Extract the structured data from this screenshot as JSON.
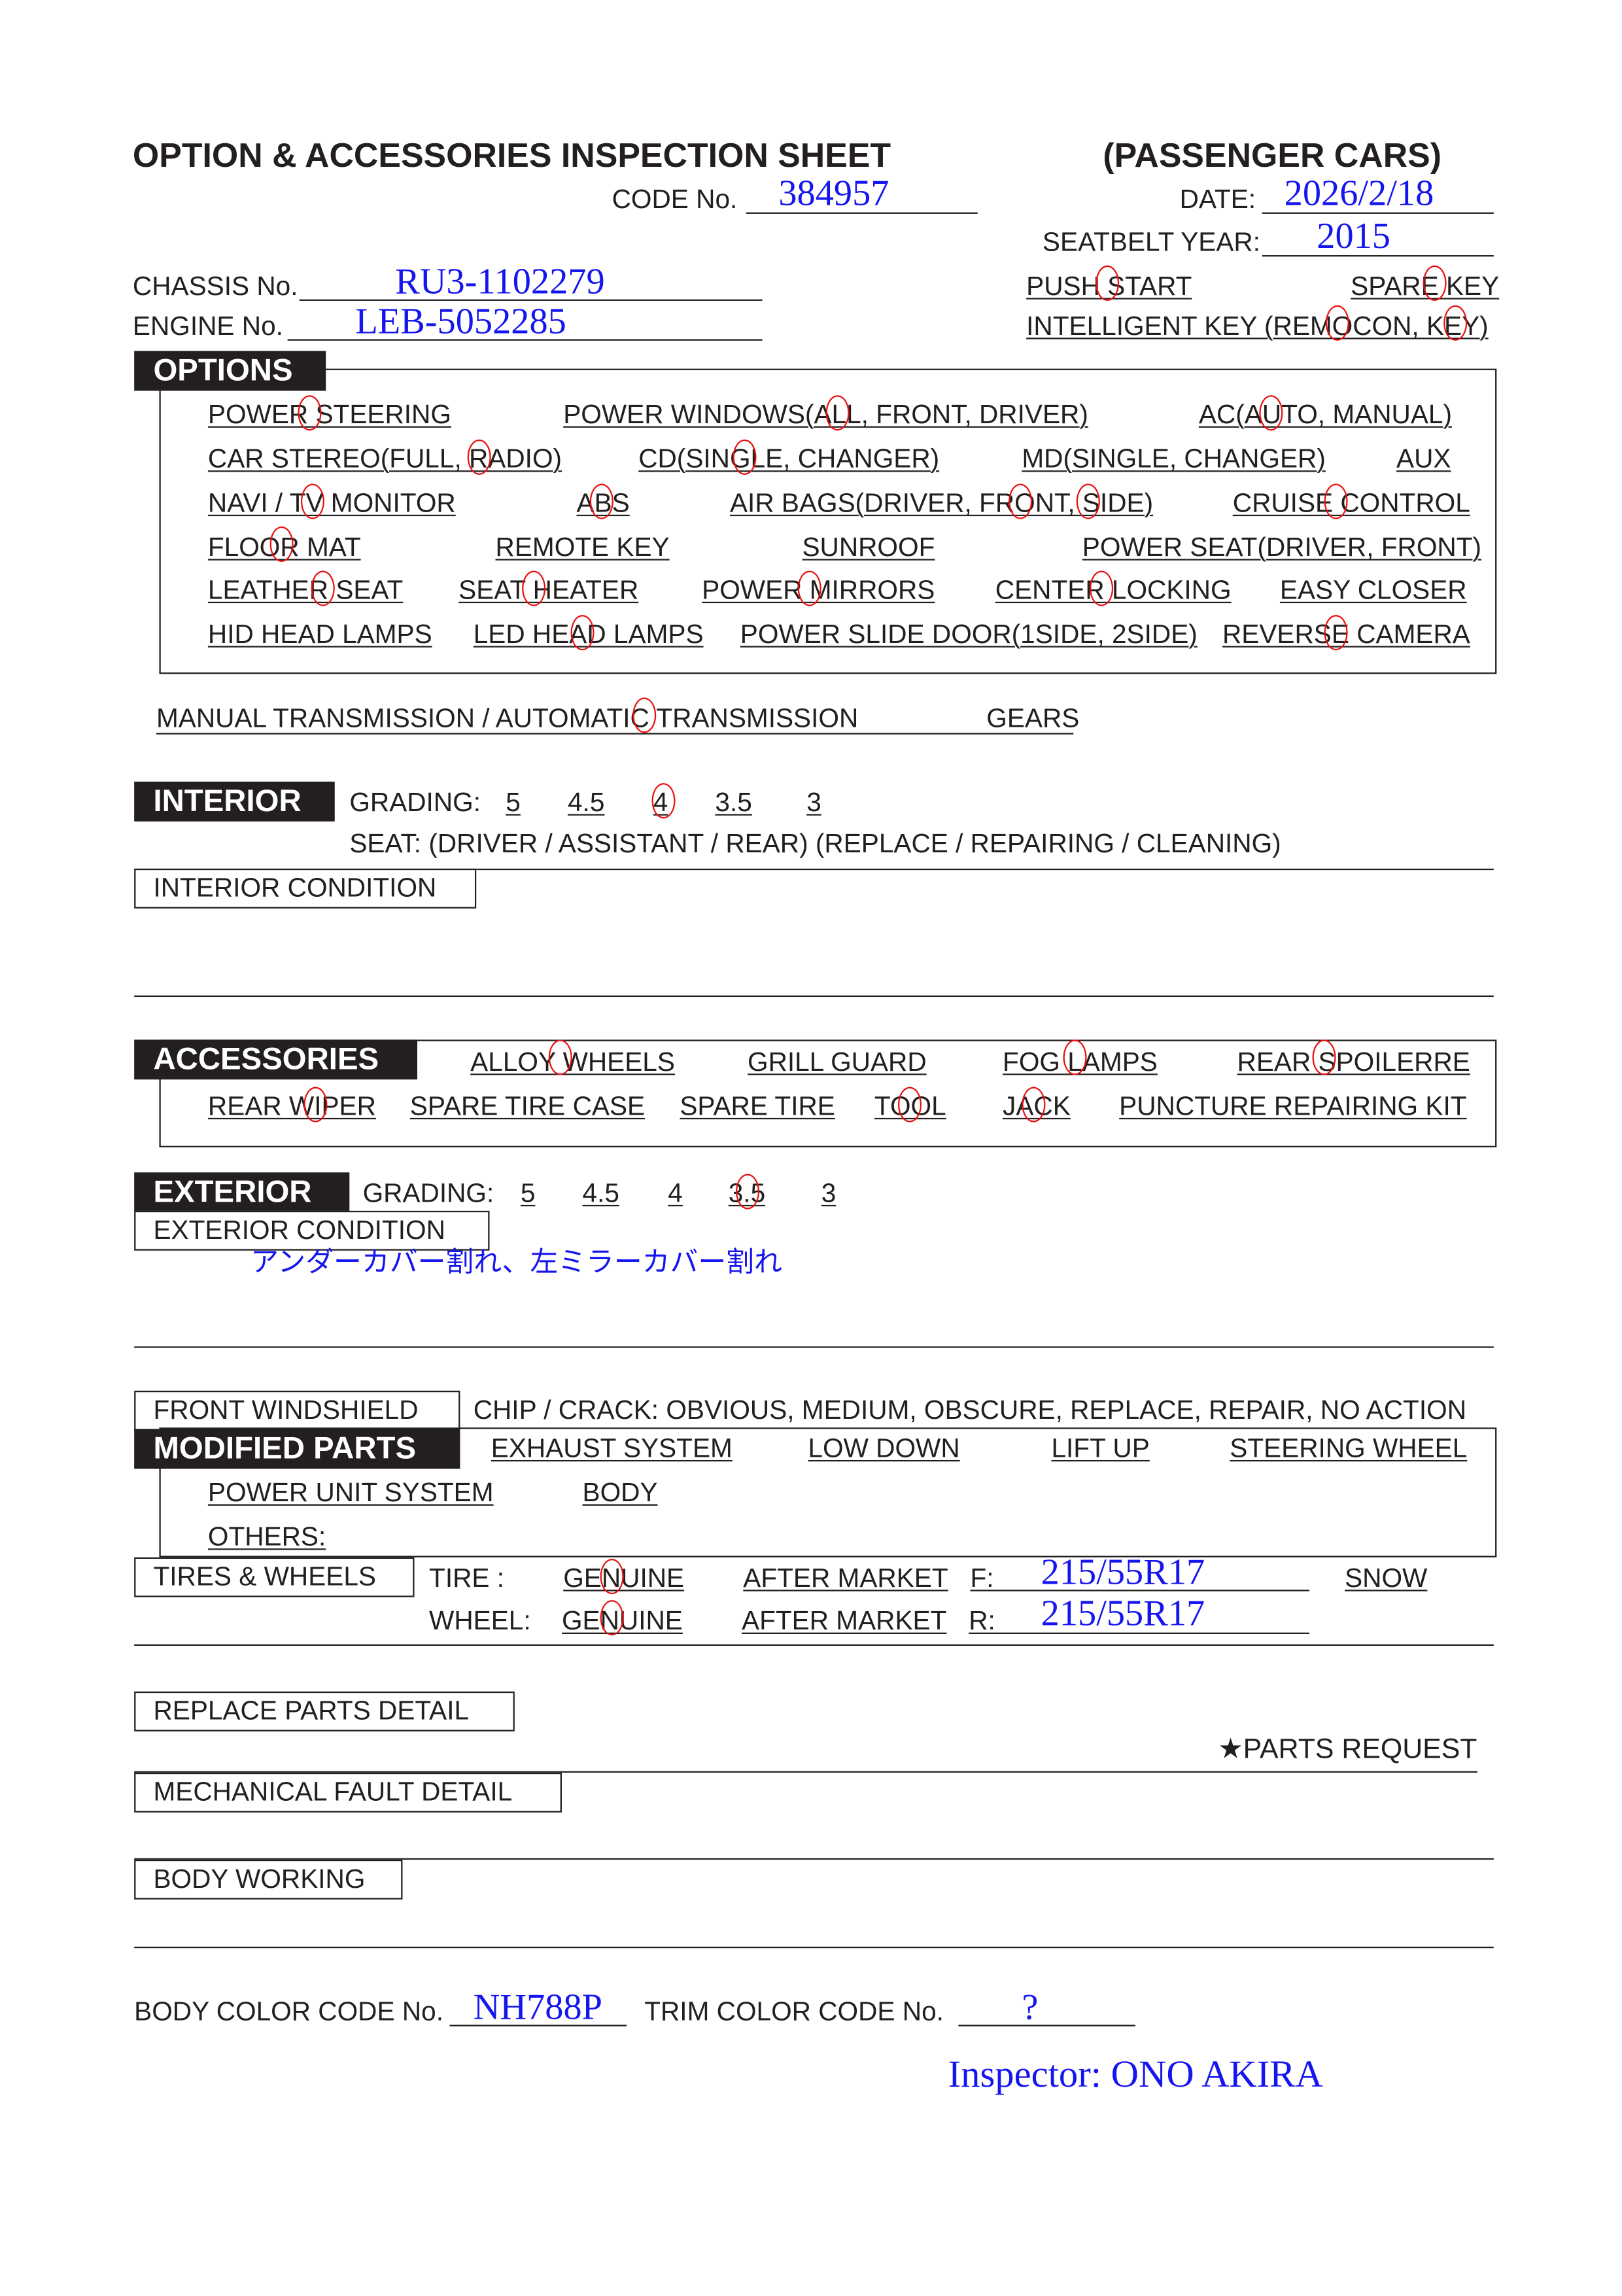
{
  "header": {
    "title": "OPTION & ACCESSORIES INSPECTION SHEET",
    "subtitle": "(PASSENGER CARS)",
    "code_label": "CODE No.",
    "code_value": "384957",
    "date_label": "DATE:",
    "date_value": "2026/2/18",
    "seatbelt_label": "SEATBELT YEAR:",
    "seatbelt_value": "2015",
    "chassis_label": "CHASSIS No.",
    "chassis_value": "RU3-1102279",
    "engine_label": "ENGINE No.",
    "engine_value": "LEB-5052285",
    "push_start": "PUSH START",
    "spare_key": "SPARE KEY",
    "intelligent_key": "INTELLIGENT KEY (REMOCON, KEY)"
  },
  "options": {
    "label": "OPTIONS",
    "items": [
      "POWER STEERING",
      "POWER WINDOWS(ALL, FRONT, DRIVER)",
      "AC(AUTO, MANUAL)",
      "CAR STEREO(FULL, RADIO)",
      "CD(SINGLE, CHANGER)",
      "MD(SINGLE, CHANGER)",
      "AUX",
      "NAVI / TV MONITOR",
      "ABS",
      "AIR BAGS(DRIVER, FRONT, SIDE)",
      "CRUISE CONTROL",
      "FLOOR MAT",
      "REMOTE KEY",
      "SUNROOF",
      "POWER SEAT(DRIVER, FRONT)",
      "LEATHER SEAT",
      "SEAT HEATER",
      "POWER MIRRORS",
      "CENTER LOCKING",
      "EASY CLOSER",
      "HID HEAD LAMPS",
      "LED HEAD LAMPS",
      "POWER SLIDE DOOR(1SIDE,  2SIDE)",
      "REVERSE CAMERA"
    ],
    "circled": [
      "POWER STEERING",
      "POWER WINDOWS: ALL",
      "AC: AUTO",
      "CAR STEREO: RADIO",
      "CD: SINGLE",
      "NAVI / TV MONITOR",
      "ABS",
      "AIR BAGS: FRONT",
      "AIR BAGS: SIDE",
      "CRUISE CONTROL",
      "FLOOR MAT",
      "LEATHER SEAT",
      "SEAT HEATER",
      "POWER MIRRORS",
      "CENTER LOCKING",
      "LED HEAD LAMPS",
      "REVERSE CAMERA",
      "PUSH START",
      "SPARE KEY",
      "INTELLIGENT KEY: REMOCON",
      "INTELLIGENT KEY: KEY"
    ]
  },
  "transmission": {
    "text": "MANUAL TRANSMISSION / AUTOMATIC TRANSMISSION",
    "gears": "GEARS",
    "circled": "AUTOMATIC TRANSMISSION"
  },
  "interior": {
    "label": "INTERIOR",
    "grading_label": "GRADING:",
    "grades": [
      "5",
      "4.5",
      "4",
      "3.5",
      "3"
    ],
    "selected_grade": "4",
    "seat_text": "SEAT:  (DRIVER / ASSISTANT / REAR)    (REPLACE / REPAIRING / CLEANING)",
    "condition_label": "INTERIOR CONDITION"
  },
  "accessories": {
    "label": "ACCESSORIES",
    "items": [
      "ALLOY WHEELS",
      "GRILL GUARD",
      "FOG LAMPS",
      "REAR SPOILERRE",
      "REAR WIPER",
      "SPARE TIRE CASE",
      "SPARE TIRE",
      "TOOL",
      "JACK",
      "PUNCTURE REPAIRING KIT"
    ],
    "circled": [
      "ALLOY WHEELS",
      "FOG LAMPS",
      "REAR SPOILERRE",
      "REAR WIPER",
      "TOOL",
      "JACK"
    ]
  },
  "exterior": {
    "label": "EXTERIOR",
    "grading_label": "GRADING:",
    "grades": [
      "5",
      "4.5",
      "4",
      "3.5",
      "3"
    ],
    "selected_grade": "3.5",
    "condition_label": "EXTERIOR CONDITION",
    "condition_note": "アンダーカバー割れ、左ミラーカバー割れ"
  },
  "windshield": {
    "label": "FRONT WINDSHIELD",
    "text": "CHIP / CRACK:  OBVIOUS,  MEDIUM,  OBSCURE,  REPLACE,  REPAIR,  NO ACTION"
  },
  "modified": {
    "label": "MODIFIED PARTS",
    "items": [
      "EXHAUST SYSTEM",
      "LOW DOWN",
      "LIFT UP",
      "STEERING WHEEL",
      "POWER UNIT SYSTEM",
      "BODY",
      "OTHERS:"
    ]
  },
  "tires": {
    "label": "TIRES & WHEELS",
    "tire_label": "TIRE :",
    "wheel_label": "WHEEL:",
    "genuine": "GENUINE",
    "after_market": "AFTER MARKET",
    "f_label": "F:",
    "r_label": "R:",
    "f_value": "215/55R17",
    "r_value": "215/55R17",
    "snow": "SNOW",
    "tire_selected": "GENUINE",
    "wheel_selected": "GENUINE"
  },
  "details": {
    "replace": "REPLACE PARTS DETAIL",
    "parts_request": "★PARTS REQUEST",
    "mechanical": "MECHANICAL FAULT DETAIL",
    "body_working": "BODY WORKING"
  },
  "colors": {
    "body_label": "BODY COLOR CODE No.",
    "body_value": "NH788P",
    "trim_label": "TRIM COLOR CODE No.",
    "trim_value": "?"
  },
  "inspector": "Inspector: ONO AKIRA",
  "ink_colors": {
    "handwriting": "#1515f0",
    "circle": "#e81010"
  }
}
